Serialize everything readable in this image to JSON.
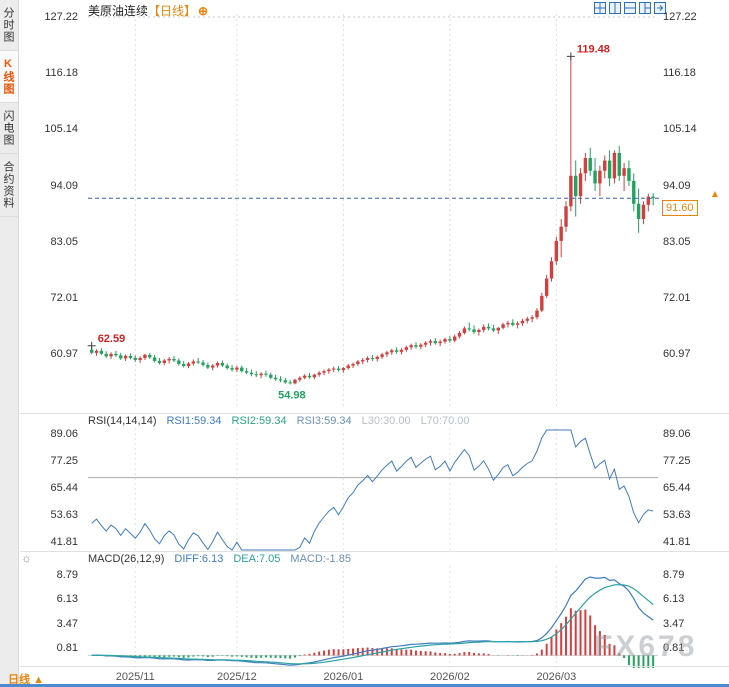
{
  "sidebar": {
    "tabs": [
      {
        "label": "分时图",
        "active": false
      },
      {
        "label": "K线图",
        "active": true
      },
      {
        "label": "闪电图",
        "active": false
      },
      {
        "label": "合约资料",
        "active": false
      }
    ]
  },
  "header": {
    "symbol": "美原油连续",
    "period_tag": "【日线】",
    "plus_icon": "⊕"
  },
  "icons": {
    "macd_settings": "☼",
    "latest_arrow": "▲"
  },
  "bottom": {
    "period_label": "日线",
    "period_arrow": "▲"
  },
  "watermark": "FX678",
  "chart_data": {
    "type": "candlestick",
    "title": "美原油连续 日线",
    "price_ticks": [
      "127.22",
      "116.18",
      "105.14",
      "94.09",
      "83.05",
      "72.01",
      "60.97"
    ],
    "x_labels": [
      {
        "label": "2025/11",
        "index": 9
      },
      {
        "label": "2025/12",
        "index": 30
      },
      {
        "label": "2026/01",
        "index": 52
      },
      {
        "label": "2026/02",
        "index": 74
      },
      {
        "label": "2026/03",
        "index": 96
      }
    ],
    "last_price": "91.60",
    "last_price_value": 91.6,
    "annotations": {
      "high": {
        "text": "119.48",
        "index": 99,
        "price": 119.48
      },
      "low": {
        "text": "54.98",
        "index": 41,
        "price": 54.98
      },
      "start_high": {
        "text": "62.59",
        "index": 0,
        "price": 62.59
      }
    },
    "candles": [
      [
        61.8,
        62.59,
        60.9,
        61.2
      ],
      [
        61.2,
        61.9,
        60.6,
        61.6
      ],
      [
        61.6,
        62.1,
        60.8,
        61.0
      ],
      [
        61.0,
        61.5,
        60.2,
        60.5
      ],
      [
        60.5,
        61.3,
        60.0,
        61.0
      ],
      [
        61.0,
        61.6,
        60.4,
        60.7
      ],
      [
        60.7,
        61.2,
        59.8,
        60.1
      ],
      [
        60.1,
        60.9,
        59.6,
        60.6
      ],
      [
        60.6,
        61.1,
        59.9,
        60.2
      ],
      [
        60.2,
        60.7,
        59.4,
        59.8
      ],
      [
        59.8,
        60.5,
        59.2,
        60.2
      ],
      [
        60.2,
        61.0,
        59.8,
        60.8
      ],
      [
        60.8,
        61.2,
        60.0,
        60.3
      ],
      [
        60.3,
        60.8,
        59.3,
        59.6
      ],
      [
        59.6,
        60.2,
        58.9,
        59.2
      ],
      [
        59.2,
        60.0,
        58.8,
        59.7
      ],
      [
        59.7,
        60.4,
        59.1,
        60.0
      ],
      [
        60.0,
        60.6,
        59.4,
        59.7
      ],
      [
        59.7,
        60.1,
        58.7,
        59.0
      ],
      [
        59.0,
        59.6,
        58.3,
        58.6
      ],
      [
        58.6,
        59.4,
        58.2,
        59.1
      ],
      [
        59.1,
        59.9,
        58.7,
        59.5
      ],
      [
        59.5,
        60.2,
        59.0,
        59.3
      ],
      [
        59.3,
        59.8,
        58.5,
        58.8
      ],
      [
        58.8,
        59.3,
        58.0,
        58.3
      ],
      [
        58.3,
        59.0,
        57.8,
        58.7
      ],
      [
        58.7,
        59.5,
        58.3,
        59.2
      ],
      [
        59.2,
        59.7,
        58.4,
        58.7
      ],
      [
        58.7,
        59.1,
        57.9,
        58.2
      ],
      [
        58.2,
        58.8,
        57.5,
        57.9
      ],
      [
        57.9,
        58.6,
        57.4,
        58.3
      ],
      [
        58.3,
        58.7,
        57.3,
        57.6
      ],
      [
        57.6,
        58.2,
        57.0,
        57.3
      ],
      [
        57.3,
        57.9,
        56.6,
        57.0
      ],
      [
        57.0,
        57.6,
        56.4,
        56.8
      ],
      [
        56.8,
        57.4,
        56.2,
        57.1
      ],
      [
        57.1,
        57.7,
        56.5,
        56.9
      ],
      [
        56.9,
        57.3,
        56.0,
        56.3
      ],
      [
        56.3,
        56.9,
        55.7,
        56.0
      ],
      [
        56.0,
        56.6,
        55.4,
        55.8
      ],
      [
        55.8,
        56.3,
        55.1,
        55.4
      ],
      [
        55.4,
        55.9,
        54.98,
        55.2
      ],
      [
        55.2,
        56.1,
        55.0,
        55.9
      ],
      [
        55.9,
        56.6,
        55.5,
        56.3
      ],
      [
        56.3,
        57.0,
        56.0,
        56.7
      ],
      [
        56.7,
        57.2,
        56.1,
        56.4
      ],
      [
        56.4,
        57.1,
        56.0,
        56.9
      ],
      [
        56.9,
        57.6,
        56.5,
        57.3
      ],
      [
        57.3,
        57.9,
        56.8,
        57.6
      ],
      [
        57.6,
        58.2,
        57.1,
        57.9
      ],
      [
        57.9,
        58.5,
        57.4,
        58.1
      ],
      [
        58.1,
        58.6,
        57.5,
        57.8
      ],
      [
        57.8,
        58.4,
        57.3,
        58.2
      ],
      [
        58.2,
        59.0,
        57.9,
        58.7
      ],
      [
        58.7,
        59.3,
        58.2,
        59.0
      ],
      [
        59.0,
        59.8,
        58.6,
        59.5
      ],
      [
        59.5,
        60.2,
        59.0,
        59.8
      ],
      [
        59.8,
        60.5,
        59.3,
        60.2
      ],
      [
        60.2,
        60.8,
        59.6,
        60.0
      ],
      [
        60.0,
        60.7,
        59.5,
        60.4
      ],
      [
        60.4,
        61.2,
        60.0,
        60.9
      ],
      [
        60.9,
        61.6,
        60.4,
        61.3
      ],
      [
        61.3,
        62.0,
        60.8,
        61.7
      ],
      [
        61.7,
        62.3,
        61.0,
        61.4
      ],
      [
        61.4,
        62.1,
        60.9,
        61.8
      ],
      [
        61.8,
        62.6,
        61.4,
        62.3
      ],
      [
        62.3,
        63.0,
        61.8,
        62.7
      ],
      [
        62.7,
        63.3,
        62.0,
        62.4
      ],
      [
        62.4,
        63.1,
        61.9,
        62.8
      ],
      [
        62.8,
        63.5,
        62.3,
        63.2
      ],
      [
        63.2,
        63.9,
        62.6,
        63.5
      ],
      [
        63.5,
        64.1,
        62.8,
        63.1
      ],
      [
        63.1,
        63.8,
        62.5,
        63.4
      ],
      [
        63.4,
        64.2,
        63.0,
        63.9
      ],
      [
        63.9,
        64.5,
        63.2,
        63.6
      ],
      [
        63.6,
        64.8,
        63.3,
        64.4
      ],
      [
        64.4,
        65.5,
        64.0,
        65.1
      ],
      [
        65.1,
        66.4,
        64.8,
        66.0
      ],
      [
        66.0,
        67.2,
        65.4,
        65.8
      ],
      [
        65.8,
        66.6,
        64.9,
        65.3
      ],
      [
        65.3,
        66.0,
        64.6,
        65.7
      ],
      [
        65.7,
        66.8,
        65.2,
        66.3
      ],
      [
        66.3,
        67.0,
        65.6,
        66.0
      ],
      [
        66.0,
        66.7,
        65.3,
        65.6
      ],
      [
        65.6,
        66.3,
        64.9,
        66.1
      ],
      [
        66.1,
        67.1,
        65.8,
        66.8
      ],
      [
        66.8,
        67.5,
        66.2,
        67.1
      ],
      [
        67.1,
        67.8,
        66.4,
        66.7
      ],
      [
        66.7,
        67.4,
        66.0,
        67.0
      ],
      [
        67.0,
        67.9,
        66.5,
        67.5
      ],
      [
        67.5,
        68.3,
        67.0,
        67.9
      ],
      [
        67.9,
        68.6,
        67.2,
        68.2
      ],
      [
        68.2,
        70.0,
        67.8,
        69.5
      ],
      [
        69.5,
        73.0,
        69.2,
        72.4
      ],
      [
        72.4,
        76.5,
        72.0,
        75.8
      ],
      [
        75.8,
        80.0,
        75.2,
        79.2
      ],
      [
        79.2,
        84.0,
        78.5,
        83.2
      ],
      [
        83.2,
        87.5,
        80.0,
        86.0
      ],
      [
        86.0,
        91.0,
        85.0,
        90.0
      ],
      [
        90.0,
        119.48,
        89.0,
        96.0
      ],
      [
        96.0,
        99.0,
        88.0,
        92.0
      ],
      [
        92.0,
        97.5,
        90.5,
        96.5
      ],
      [
        96.5,
        100.5,
        95.0,
        99.5
      ],
      [
        99.5,
        101.5,
        96.0,
        97.0
      ],
      [
        97.0,
        99.5,
        93.0,
        94.5
      ],
      [
        94.5,
        98.0,
        92.0,
        97.0
      ],
      [
        97.0,
        100.0,
        95.5,
        99.0
      ],
      [
        99.0,
        101.0,
        94.0,
        95.5
      ],
      [
        95.5,
        101.0,
        94.5,
        100.5
      ],
      [
        100.5,
        101.9,
        95.0,
        96.0
      ],
      [
        96.0,
        98.5,
        93.0,
        97.5
      ],
      [
        97.5,
        99.0,
        94.0,
        95.0
      ],
      [
        95.0,
        96.5,
        89.0,
        90.5
      ],
      [
        90.5,
        93.5,
        84.8,
        87.5
      ],
      [
        87.5,
        91.0,
        86.5,
        90.3
      ],
      [
        90.3,
        92.5,
        89.0,
        91.9
      ],
      [
        91.9,
        92.6,
        90.2,
        91.6
      ]
    ],
    "rsi": {
      "header": "RSI(14,14,14)",
      "period": 14,
      "items": [
        {
          "label": "RSI1:59.34",
          "color": "#3f7cbf"
        },
        {
          "label": "RSI2:59.34",
          "color": "#2aa37a"
        },
        {
          "label": "RSI3:59.34",
          "color": "#6b8fb5"
        },
        {
          "label": "L30:30.00",
          "color": "#b6bfc9"
        },
        {
          "label": "L70:70.00",
          "color": "#b6bfc9"
        }
      ],
      "ticks": [
        "89.06",
        "77.25",
        "65.44",
        "53.63",
        "41.81"
      ],
      "levels": [
        30,
        70
      ]
    },
    "macd": {
      "header": "MACD(26,12,9)",
      "fast": 12,
      "slow": 26,
      "signal": 9,
      "items": [
        {
          "label": "DIFF:6.13",
          "color": "#3f7cbf"
        },
        {
          "label": "DEA:7.05",
          "color": "#2aa3a3"
        },
        {
          "label": "MACD:-1.85",
          "color": "#6b8fb5"
        }
      ],
      "ticks": [
        "8.79",
        "6.13",
        "3.47",
        "0.81"
      ]
    },
    "colors": {
      "up": "#d23f3f",
      "down": "#21a35f",
      "rsi_line": "#3f7cbf",
      "diff_line": "#3f7cbf",
      "dea_line": "#2aa3a3",
      "hist_pos": "#d23f3f",
      "hist_neg": "#21a35f",
      "current_line": "#3566a8",
      "accent": "#e8850c",
      "annotation_high": "#cc2222",
      "annotation_low": "#21a35f"
    }
  }
}
